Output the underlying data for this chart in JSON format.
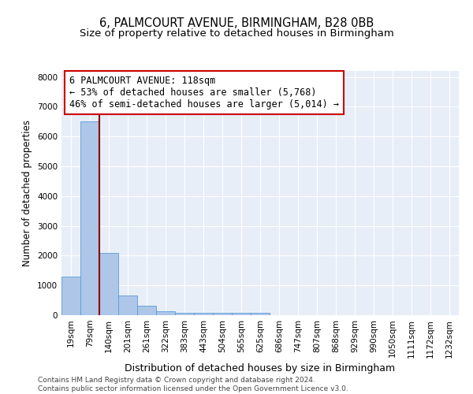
{
  "title": "6, PALMCOURT AVENUE, BIRMINGHAM, B28 0BB",
  "subtitle": "Size of property relative to detached houses in Birmingham",
  "xlabel": "Distribution of detached houses by size in Birmingham",
  "ylabel": "Number of detached properties",
  "categories": [
    "19sqm",
    "79sqm",
    "140sqm",
    "201sqm",
    "261sqm",
    "322sqm",
    "383sqm",
    "443sqm",
    "504sqm",
    "565sqm",
    "625sqm",
    "686sqm",
    "747sqm",
    "807sqm",
    "868sqm",
    "929sqm",
    "990sqm",
    "1050sqm",
    "1111sqm",
    "1172sqm",
    "1232sqm"
  ],
  "values": [
    1300,
    6500,
    2100,
    650,
    310,
    130,
    90,
    70,
    70,
    70,
    70,
    0,
    0,
    0,
    0,
    0,
    0,
    0,
    0,
    0,
    0
  ],
  "bar_color": "#aec6e8",
  "bar_edge_color": "#5b9bd5",
  "property_line_color": "#8b0000",
  "annotation_line1": "6 PALMCOURT AVENUE: 118sqm",
  "annotation_line2": "← 53% of detached houses are smaller (5,768)",
  "annotation_line3": "46% of semi-detached houses are larger (5,014) →",
  "annotation_box_color": "#ffffff",
  "annotation_box_edge_color": "#cc0000",
  "ylim": [
    0,
    8200
  ],
  "yticks": [
    0,
    1000,
    2000,
    3000,
    4000,
    5000,
    6000,
    7000,
    8000
  ],
  "plot_bg_color": "#e8eef8",
  "footer_text": "Contains HM Land Registry data © Crown copyright and database right 2024.\nContains public sector information licensed under the Open Government Licence v3.0.",
  "title_fontsize": 10.5,
  "subtitle_fontsize": 9.5,
  "xlabel_fontsize": 9,
  "ylabel_fontsize": 8.5,
  "tick_fontsize": 7.5,
  "annotation_fontsize": 8.5,
  "footer_fontsize": 6.5
}
